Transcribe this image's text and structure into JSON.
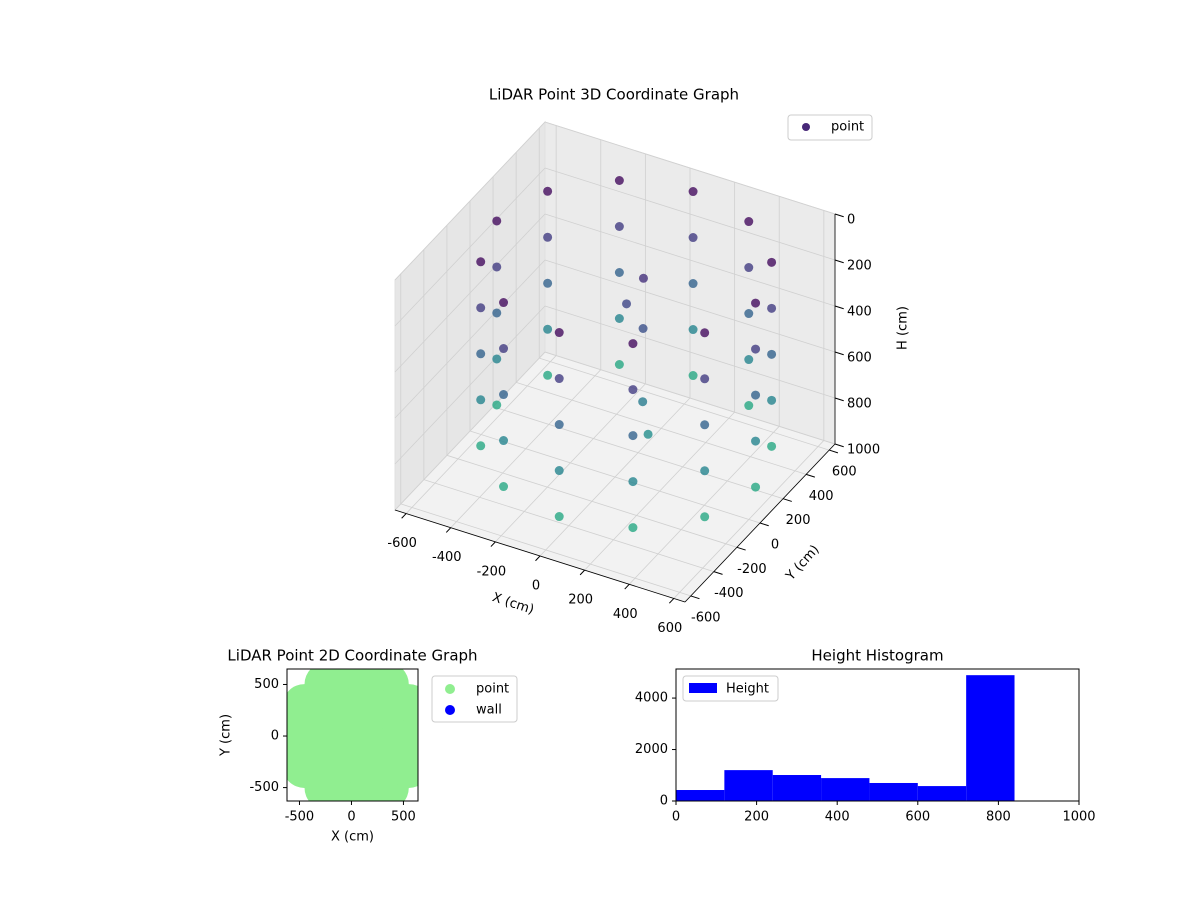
{
  "chart_data": [
    {
      "type": "scatter3d",
      "title": "LiDAR Point 3D Coordinate Graph",
      "xlabel": "X (cm)",
      "ylabel": "Y (cm)",
      "zlabel": "H (cm)",
      "xlim": [
        -650,
        650
      ],
      "ylim": [
        -650,
        650
      ],
      "zlim": [
        0,
        1000
      ],
      "z_inverted": true,
      "xticks": [
        -600,
        -400,
        -200,
        0,
        200,
        400,
        600
      ],
      "yticks": [
        -600,
        -400,
        -200,
        0,
        200,
        400,
        600
      ],
      "zticks": [
        0,
        200,
        400,
        600,
        800,
        1000
      ],
      "colormap": "viridis",
      "legend": "upper right",
      "grid": true,
      "series": [
        {
          "name": "point",
          "color": "#482878",
          "x": [
            630,
            552,
            340,
            50,
            -240,
            -452,
            -530,
            -452,
            -240,
            50,
            340,
            552,
            630,
            552,
            340,
            50,
            -240,
            -452,
            -530,
            -452,
            -240,
            50,
            340,
            552,
            630,
            552,
            340,
            50,
            -240,
            -452,
            -530,
            -452,
            -240,
            50,
            340,
            552,
            630,
            552,
            340,
            50,
            -240,
            -452,
            -530,
            -452,
            -240,
            50,
            340,
            552,
            630,
            552,
            340,
            50,
            -240,
            -452,
            -530,
            -452,
            -240,
            50,
            340,
            552,
            50,
            0,
            100,
            150,
            200
          ],
          "y": [
            0,
            290,
            502,
            580,
            502,
            290,
            0,
            -290,
            -502,
            -580,
            -502,
            -290,
            0,
            290,
            502,
            580,
            502,
            290,
            0,
            -290,
            -502,
            -580,
            -502,
            -290,
            0,
            290,
            502,
            580,
            502,
            290,
            0,
            -290,
            -502,
            -580,
            -502,
            -290,
            0,
            290,
            502,
            580,
            502,
            290,
            0,
            -290,
            -502,
            -580,
            -502,
            -290,
            0,
            290,
            502,
            580,
            502,
            290,
            0,
            -290,
            -502,
            -580,
            -502,
            -290,
            150,
            100,
            50,
            -50,
            -100
          ],
          "z": [
            50,
            50,
            50,
            50,
            50,
            50,
            50,
            50,
            50,
            50,
            50,
            50,
            250,
            250,
            250,
            250,
            250,
            250,
            250,
            250,
            250,
            250,
            250,
            250,
            450,
            450,
            450,
            450,
            450,
            450,
            450,
            450,
            450,
            450,
            450,
            450,
            650,
            650,
            650,
            650,
            650,
            650,
            650,
            650,
            650,
            650,
            650,
            650,
            850,
            850,
            850,
            850,
            850,
            850,
            850,
            850,
            850,
            850,
            850,
            850,
            200,
            300,
            350,
            600,
            700
          ]
        }
      ]
    },
    {
      "type": "scatter",
      "title": "LiDAR Point 2D Coordinate Graph",
      "xlabel": "X (cm)",
      "ylabel": "Y (cm)",
      "xlim": [
        -620,
        640
      ],
      "ylim": [
        -630,
        650
      ],
      "xticks": [
        -500,
        0,
        500
      ],
      "yticks": [
        -500,
        0,
        500
      ],
      "legend": "outside right",
      "series": [
        {
          "name": "point",
          "color": "#90ee90",
          "x": [
            630,
            552,
            340,
            50,
            -240,
            -452,
            -530,
            -452,
            -240,
            50,
            340,
            552,
            350,
            200,
            -100,
            -250,
            -100,
            200,
            50
          ],
          "y": [
            0,
            290,
            502,
            580,
            502,
            290,
            0,
            -290,
            -502,
            -580,
            -502,
            -290,
            0,
            260,
            260,
            0,
            -260,
            -260,
            0
          ]
        },
        {
          "name": "wall",
          "color": "#0000ff",
          "x": [],
          "y": []
        }
      ]
    },
    {
      "type": "histogram",
      "title": "Height Histogram",
      "name": "Height",
      "color": "#0000ff",
      "bins": [
        0,
        120,
        240,
        360,
        480,
        600,
        720,
        840
      ],
      "values": [
        427,
        1200,
        1010,
        890,
        700,
        580,
        4890
      ],
      "xlim": [
        0,
        1000
      ],
      "ylim": [
        0,
        5130
      ],
      "xticks": [
        0,
        200,
        400,
        600,
        800,
        1000
      ],
      "yticks": [
        0,
        2000,
        4000
      ],
      "legend": "upper left"
    }
  ]
}
